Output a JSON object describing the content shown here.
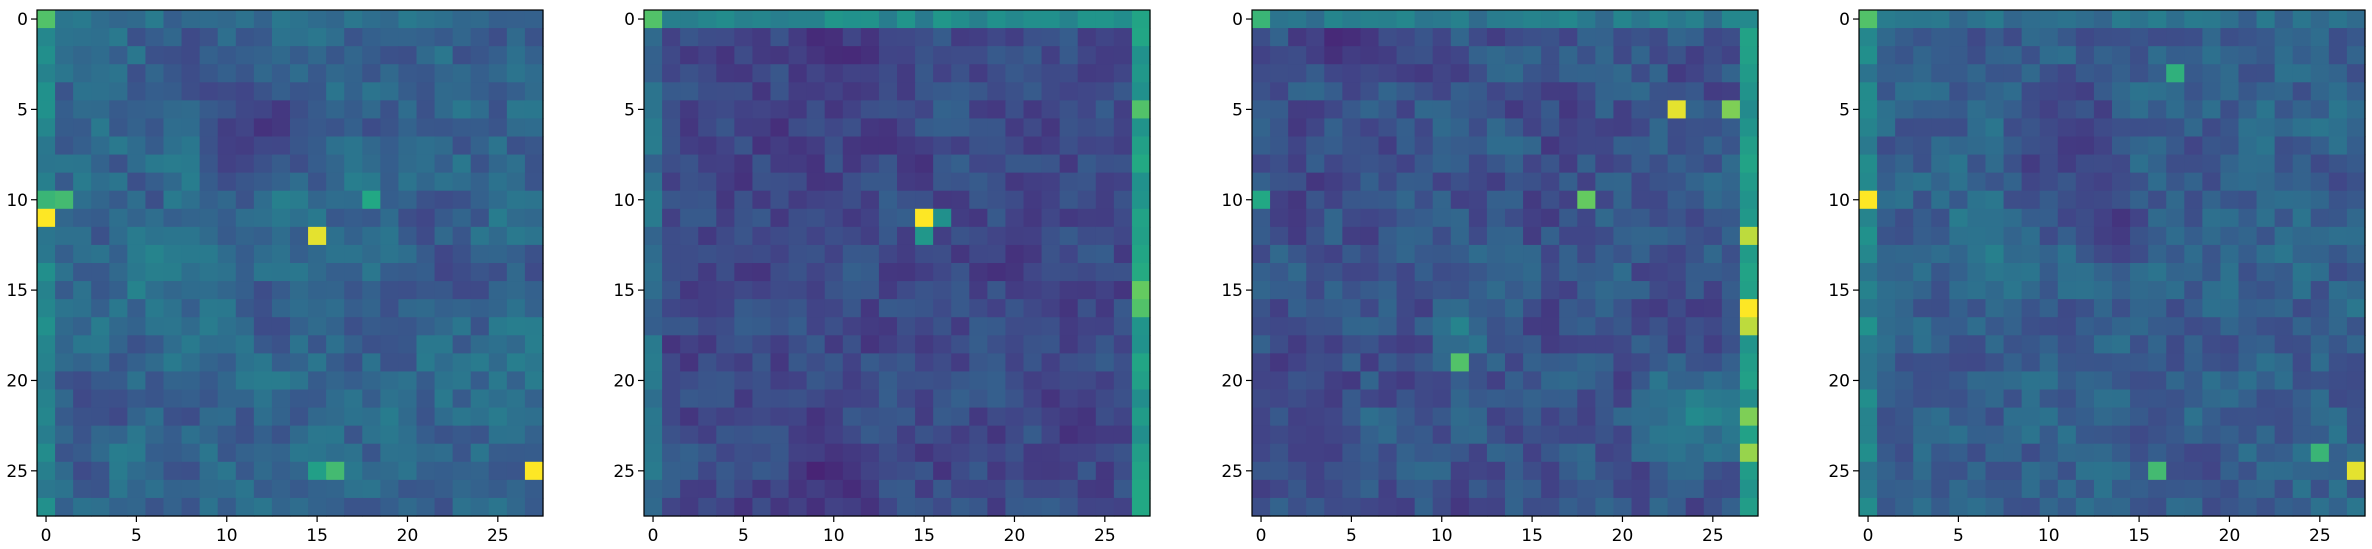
{
  "chart_data": [
    {
      "type": "heatmap",
      "title": "",
      "xlabel": "",
      "ylabel": "",
      "rows": 28,
      "cols": 28,
      "colormap": "viridis",
      "x_ticks": [
        0,
        5,
        10,
        15,
        20,
        25
      ],
      "y_ticks": [
        0,
        5,
        10,
        15,
        20,
        25
      ],
      "seed": 11,
      "base_level": 0.4,
      "noise_amplitude": 0.18,
      "edges": [
        {
          "side": "top",
          "value": 0.45
        },
        {
          "side": "left",
          "value": 0.55
        }
      ],
      "highlights": [
        {
          "row": 0,
          "col": 0,
          "value": 0.85
        },
        {
          "row": 10,
          "col": 0,
          "value": 0.8
        },
        {
          "row": 10,
          "col": 1,
          "value": 0.82
        },
        {
          "row": 11,
          "col": 0,
          "value": 1.0
        },
        {
          "row": 12,
          "col": 15,
          "value": 0.98
        },
        {
          "row": 10,
          "col": 18,
          "value": 0.75
        },
        {
          "row": 25,
          "col": 27,
          "value": 1.0
        },
        {
          "row": 25,
          "col": 16,
          "value": 0.82
        },
        {
          "row": 25,
          "col": 15,
          "value": 0.7
        }
      ],
      "dark_regions": [
        {
          "row": 6,
          "col": 12,
          "radius": 4,
          "value": 0.15
        },
        {
          "row": 21,
          "col": 3,
          "radius": 2,
          "value": 0.2
        }
      ],
      "bright_regions": [
        {
          "row": 13,
          "col": 7,
          "radius": 3,
          "value": 0.6
        }
      ]
    },
    {
      "type": "heatmap",
      "title": "",
      "xlabel": "",
      "ylabel": "",
      "rows": 28,
      "cols": 28,
      "colormap": "viridis",
      "x_ticks": [
        0,
        5,
        10,
        15,
        20,
        25
      ],
      "y_ticks": [
        0,
        5,
        10,
        15,
        20,
        25
      ],
      "seed": 23,
      "base_level": 0.28,
      "noise_amplitude": 0.15,
      "edges": [
        {
          "side": "top",
          "value": 0.58
        },
        {
          "side": "right",
          "value": 0.68
        },
        {
          "side": "left",
          "value": 0.45
        }
      ],
      "highlights": [
        {
          "row": 0,
          "col": 0,
          "value": 0.85
        },
        {
          "row": 11,
          "col": 15,
          "value": 1.0
        },
        {
          "row": 11,
          "col": 16,
          "value": 0.62
        },
        {
          "row": 12,
          "col": 15,
          "value": 0.66
        },
        {
          "row": 5,
          "col": 27,
          "value": 0.85
        },
        {
          "row": 15,
          "col": 27,
          "value": 0.88
        },
        {
          "row": 16,
          "col": 27,
          "value": 0.85
        },
        {
          "row": 26,
          "col": 27,
          "value": 0.75
        }
      ],
      "dark_regions": [
        {
          "row": 2,
          "col": 10,
          "radius": 3,
          "value": 0.1
        },
        {
          "row": 25,
          "col": 10,
          "radius": 3,
          "value": 0.1
        }
      ],
      "bright_regions": []
    },
    {
      "type": "heatmap",
      "title": "",
      "xlabel": "",
      "ylabel": "",
      "rows": 28,
      "cols": 28,
      "colormap": "viridis",
      "x_ticks": [
        0,
        5,
        10,
        15,
        20,
        25
      ],
      "y_ticks": [
        0,
        5,
        10,
        15,
        20,
        25
      ],
      "seed": 37,
      "base_level": 0.32,
      "noise_amplitude": 0.18,
      "edges": [
        {
          "side": "top",
          "value": 0.5
        },
        {
          "side": "right",
          "value": 0.65
        }
      ],
      "highlights": [
        {
          "row": 0,
          "col": 0,
          "value": 0.8
        },
        {
          "row": 5,
          "col": 23,
          "value": 0.98
        },
        {
          "row": 5,
          "col": 26,
          "value": 0.9
        },
        {
          "row": 10,
          "col": 18,
          "value": 0.88
        },
        {
          "row": 10,
          "col": 0,
          "value": 0.75
        },
        {
          "row": 12,
          "col": 27,
          "value": 0.95
        },
        {
          "row": 16,
          "col": 27,
          "value": 1.0
        },
        {
          "row": 17,
          "col": 27,
          "value": 0.95
        },
        {
          "row": 19,
          "col": 11,
          "value": 0.85
        },
        {
          "row": 22,
          "col": 27,
          "value": 0.9
        },
        {
          "row": 24,
          "col": 27,
          "value": 0.92
        }
      ],
      "dark_regions": [
        {
          "row": 1,
          "col": 5,
          "radius": 3,
          "value": 0.1
        },
        {
          "row": 23,
          "col": 3,
          "radius": 3,
          "value": 0.12
        }
      ],
      "bright_regions": [
        {
          "row": 22,
          "col": 24,
          "radius": 4,
          "value": 0.65
        },
        {
          "row": 17,
          "col": 11,
          "radius": 2,
          "value": 0.6
        }
      ]
    },
    {
      "type": "heatmap",
      "title": "",
      "xlabel": "",
      "ylabel": "",
      "rows": 28,
      "cols": 28,
      "colormap": "viridis",
      "x_ticks": [
        0,
        5,
        10,
        15,
        20,
        25
      ],
      "y_ticks": [
        0,
        5,
        10,
        15,
        20,
        25
      ],
      "seed": 53,
      "base_level": 0.38,
      "noise_amplitude": 0.17,
      "edges": [
        {
          "side": "top",
          "value": 0.45
        },
        {
          "side": "left",
          "value": 0.55
        }
      ],
      "highlights": [
        {
          "row": 0,
          "col": 0,
          "value": 0.85
        },
        {
          "row": 10,
          "col": 0,
          "value": 1.0
        },
        {
          "row": 25,
          "col": 27,
          "value": 0.98
        },
        {
          "row": 25,
          "col": 16,
          "value": 0.82
        },
        {
          "row": 24,
          "col": 25,
          "value": 0.8
        },
        {
          "row": 3,
          "col": 17,
          "value": 0.78
        }
      ],
      "dark_regions": [
        {
          "row": 7,
          "col": 11,
          "radius": 4,
          "value": 0.12
        },
        {
          "row": 12,
          "col": 14,
          "radius": 2,
          "value": 0.12
        }
      ],
      "bright_regions": [
        {
          "row": 13,
          "col": 7,
          "radius": 3,
          "value": 0.58
        }
      ]
    }
  ]
}
